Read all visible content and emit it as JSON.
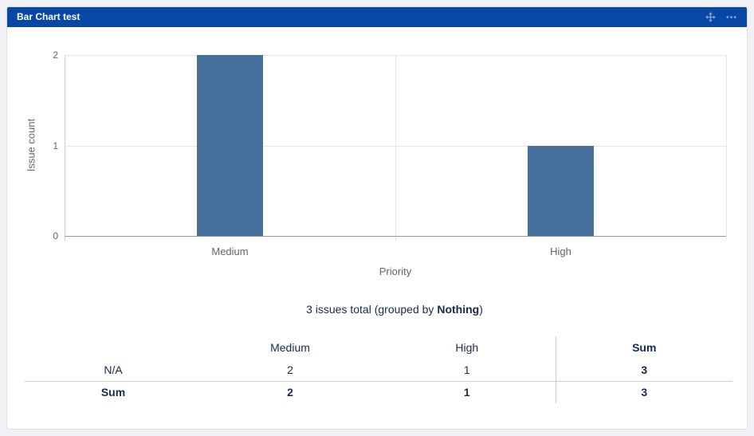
{
  "colors": {
    "header_bg": "#0747A6",
    "header_icon": "#8CA3D4",
    "bar": "#46719C",
    "text_dark": "#172B4D",
    "axis_text": "#666666",
    "gridline": "#e7e7e7",
    "baseline": "#999999"
  },
  "header": {
    "title": "Bar Chart test",
    "icons": [
      "move-icon",
      "more-options-icon"
    ]
  },
  "chart_data": {
    "type": "bar",
    "categories": [
      "Medium",
      "High"
    ],
    "values": [
      2,
      1
    ],
    "title": "Bar Chart test",
    "xlabel": "Priority",
    "ylabel": "Issue count",
    "yticks": [
      0,
      1,
      2
    ],
    "ylim": [
      0,
      2
    ],
    "bar_color": "#46719C",
    "grid": true,
    "legend": "none"
  },
  "summary": {
    "prefix": "3 issues total (grouped by ",
    "bold": "Nothing",
    "suffix": ")"
  },
  "table": {
    "headers": [
      "",
      "Medium",
      "High",
      "Sum"
    ],
    "rows": [
      {
        "label": "N/A",
        "values": [
          "2",
          "1",
          "3"
        ]
      },
      {
        "label": "Sum",
        "values": [
          "2",
          "1",
          "3"
        ]
      }
    ]
  }
}
